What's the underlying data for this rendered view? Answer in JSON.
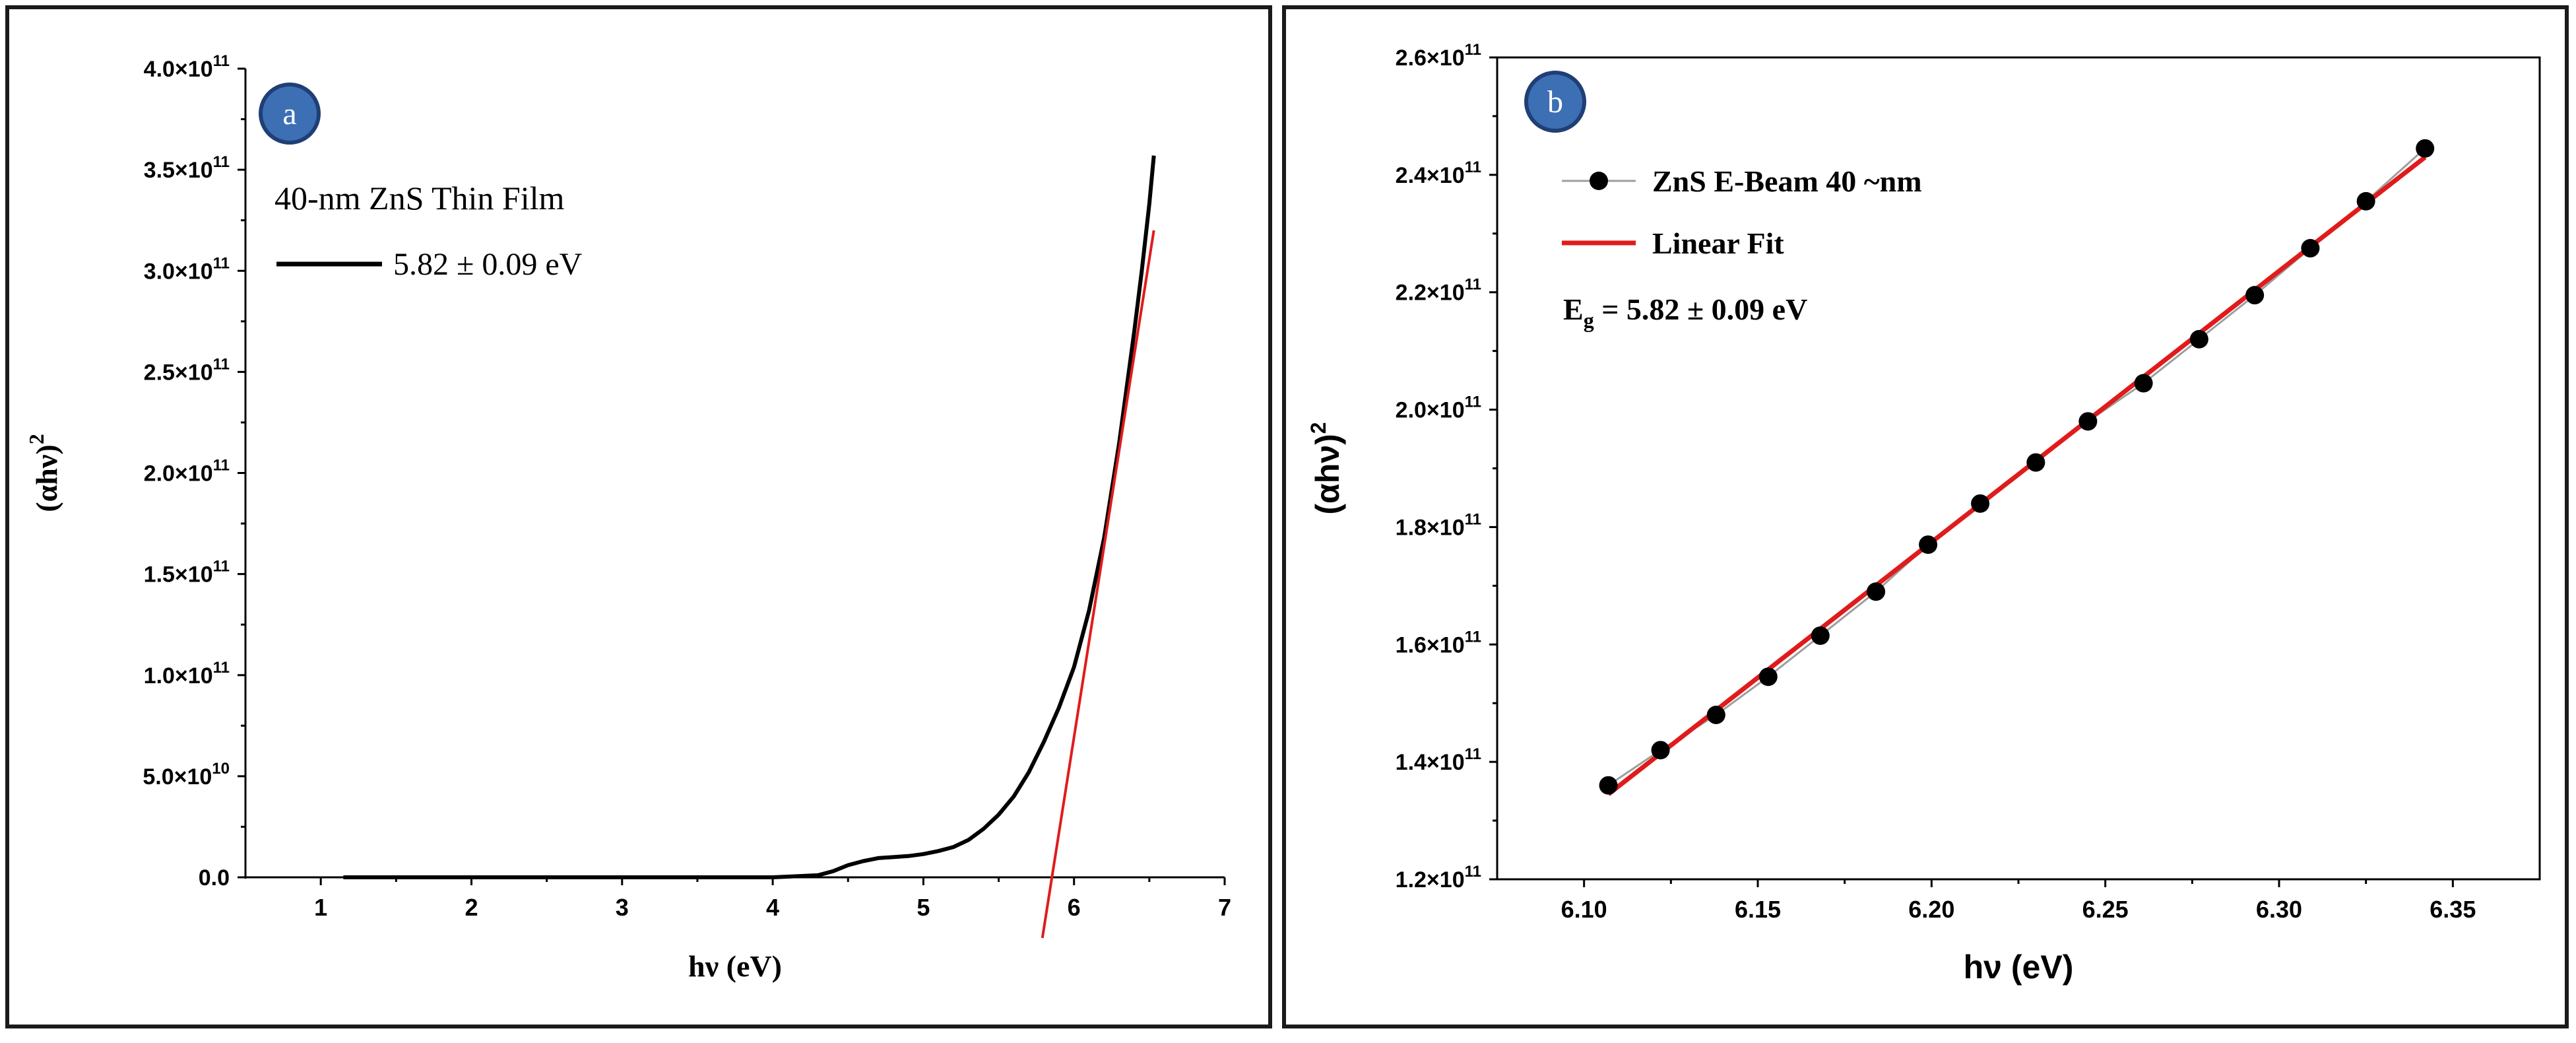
{
  "colors": {
    "axis": "#000000",
    "fit_line": "#e01b1b",
    "data_line": "#000000",
    "badge_fill": "#3d6fb4",
    "badge_ring": "#1f3f75",
    "connector": "#9e9e9e"
  },
  "chart_data": [
    {
      "panel": "a",
      "type": "line",
      "badge": "a",
      "title": "40-nm ZnS Thin Film",
      "xlabel": "hν (eV)",
      "ylabel_base": "(αhν)",
      "ylabel_sup": "2",
      "xlim": [
        0.5,
        7
      ],
      "ylim": [
        0,
        400000000000.0
      ],
      "x_ticks": [
        "1",
        "2",
        "3",
        "4",
        "5",
        "6",
        "7"
      ],
      "x_tick_values": [
        1,
        2,
        3,
        4,
        5,
        6,
        7
      ],
      "y_ticks": [
        {
          "mant": "0.0",
          "exp": ""
        },
        {
          "mant": "5.0×10",
          "exp": "10"
        },
        {
          "mant": "1.0×10",
          "exp": "11"
        },
        {
          "mant": "1.5×10",
          "exp": "11"
        },
        {
          "mant": "2.0×10",
          "exp": "11"
        },
        {
          "mant": "2.5×10",
          "exp": "11"
        },
        {
          "mant": "3.0×10",
          "exp": "11"
        },
        {
          "mant": "3.5×10",
          "exp": "11"
        },
        {
          "mant": "4.0×10",
          "exp": "11"
        }
      ],
      "y_tick_values": [
        0,
        50000000000.0,
        100000000000.0,
        150000000000.0,
        200000000000.0,
        250000000000.0,
        300000000000.0,
        350000000000.0,
        400000000000.0
      ],
      "legend_label": "5.82 ± 0.09 eV",
      "series": [
        {
          "name": "ZnS Thin Film",
          "color": "#000000",
          "x": [
            1.15,
            2.0,
            3.0,
            4.0,
            4.3,
            4.4,
            4.5,
            4.6,
            4.7,
            4.8,
            4.9,
            5.0,
            5.1,
            5.2,
            5.3,
            5.4,
            5.5,
            5.6,
            5.7,
            5.8,
            5.9,
            6.0,
            6.1,
            6.2,
            6.3,
            6.4,
            6.45,
            6.5,
            6.53
          ],
          "y": [
            0,
            0,
            0,
            0,
            1000000000.0,
            3000000000.0,
            6000000000.0,
            8000000000.0,
            9500000000.0,
            10000000000.0,
            10500000000.0,
            11500000000.0,
            13000000000.0,
            15000000000.0,
            18500000000.0,
            24000000000.0,
            31000000000.0,
            40000000000.0,
            52000000000.0,
            67000000000.0,
            84000000000.0,
            104000000000.0,
            132000000000.0,
            168000000000.0,
            215000000000.0,
            270000000000.0,
            300000000000.0,
            333000000000.0,
            357000000000.0
          ]
        }
      ],
      "fit_line": {
        "x": [
          5.79,
          6.53
        ],
        "y": [
          -30000000000.0,
          320000000000.0
        ]
      }
    },
    {
      "panel": "b",
      "type": "scatter",
      "badge": "b",
      "xlabel": "hν (eV)",
      "ylabel_base": "(αhν)",
      "ylabel_sup": "2",
      "xlim": [
        6.075,
        6.375
      ],
      "ylim": [
        120000000000.0,
        260000000000.0
      ],
      "x_ticks": [
        "6.10",
        "6.15",
        "6.20",
        "6.25",
        "6.30",
        "6.35"
      ],
      "x_tick_values": [
        6.1,
        6.15,
        6.2,
        6.25,
        6.3,
        6.35
      ],
      "y_ticks": [
        {
          "mant": "1.2×10",
          "exp": "11"
        },
        {
          "mant": "1.4×10",
          "exp": "11"
        },
        {
          "mant": "1.6×10",
          "exp": "11"
        },
        {
          "mant": "1.8×10",
          "exp": "11"
        },
        {
          "mant": "2.0×10",
          "exp": "11"
        },
        {
          "mant": "2.2×10",
          "exp": "11"
        },
        {
          "mant": "2.4×10",
          "exp": "11"
        },
        {
          "mant": "2.6×10",
          "exp": "11"
        }
      ],
      "y_tick_values": [
        120000000000.0,
        140000000000.0,
        160000000000.0,
        180000000000.0,
        200000000000.0,
        220000000000.0,
        240000000000.0,
        260000000000.0
      ],
      "legend": [
        {
          "label": "ZnS E-Beam 40 ~nm",
          "kind": "marker"
        },
        {
          "label": "Linear Fit",
          "kind": "line"
        }
      ],
      "annotation": {
        "prefix": "E",
        "sub": "g",
        "suffix": " = 5.82 ± 0.09  eV"
      },
      "series": [
        {
          "name": "ZnS E-Beam 40 ~nm",
          "color": "#000000",
          "x": [
            6.107,
            6.122,
            6.138,
            6.153,
            6.168,
            6.184,
            6.199,
            6.214,
            6.23,
            6.245,
            6.261,
            6.277,
            6.293,
            6.309,
            6.325,
            6.342
          ],
          "y": [
            136000000000.0,
            142000000000.0,
            148000000000.0,
            154500000000.0,
            161500000000.0,
            169000000000.0,
            177000000000.0,
            184000000000.0,
            191000000000.0,
            198000000000.0,
            204500000000.0,
            212000000000.0,
            219500000000.0,
            227500000000.0,
            235500000000.0,
            244500000000.0
          ]
        }
      ],
      "fit_line": {
        "x": [
          6.107,
          6.342
        ],
        "y": [
          134500000000.0,
          243000000000.0
        ]
      }
    }
  ]
}
